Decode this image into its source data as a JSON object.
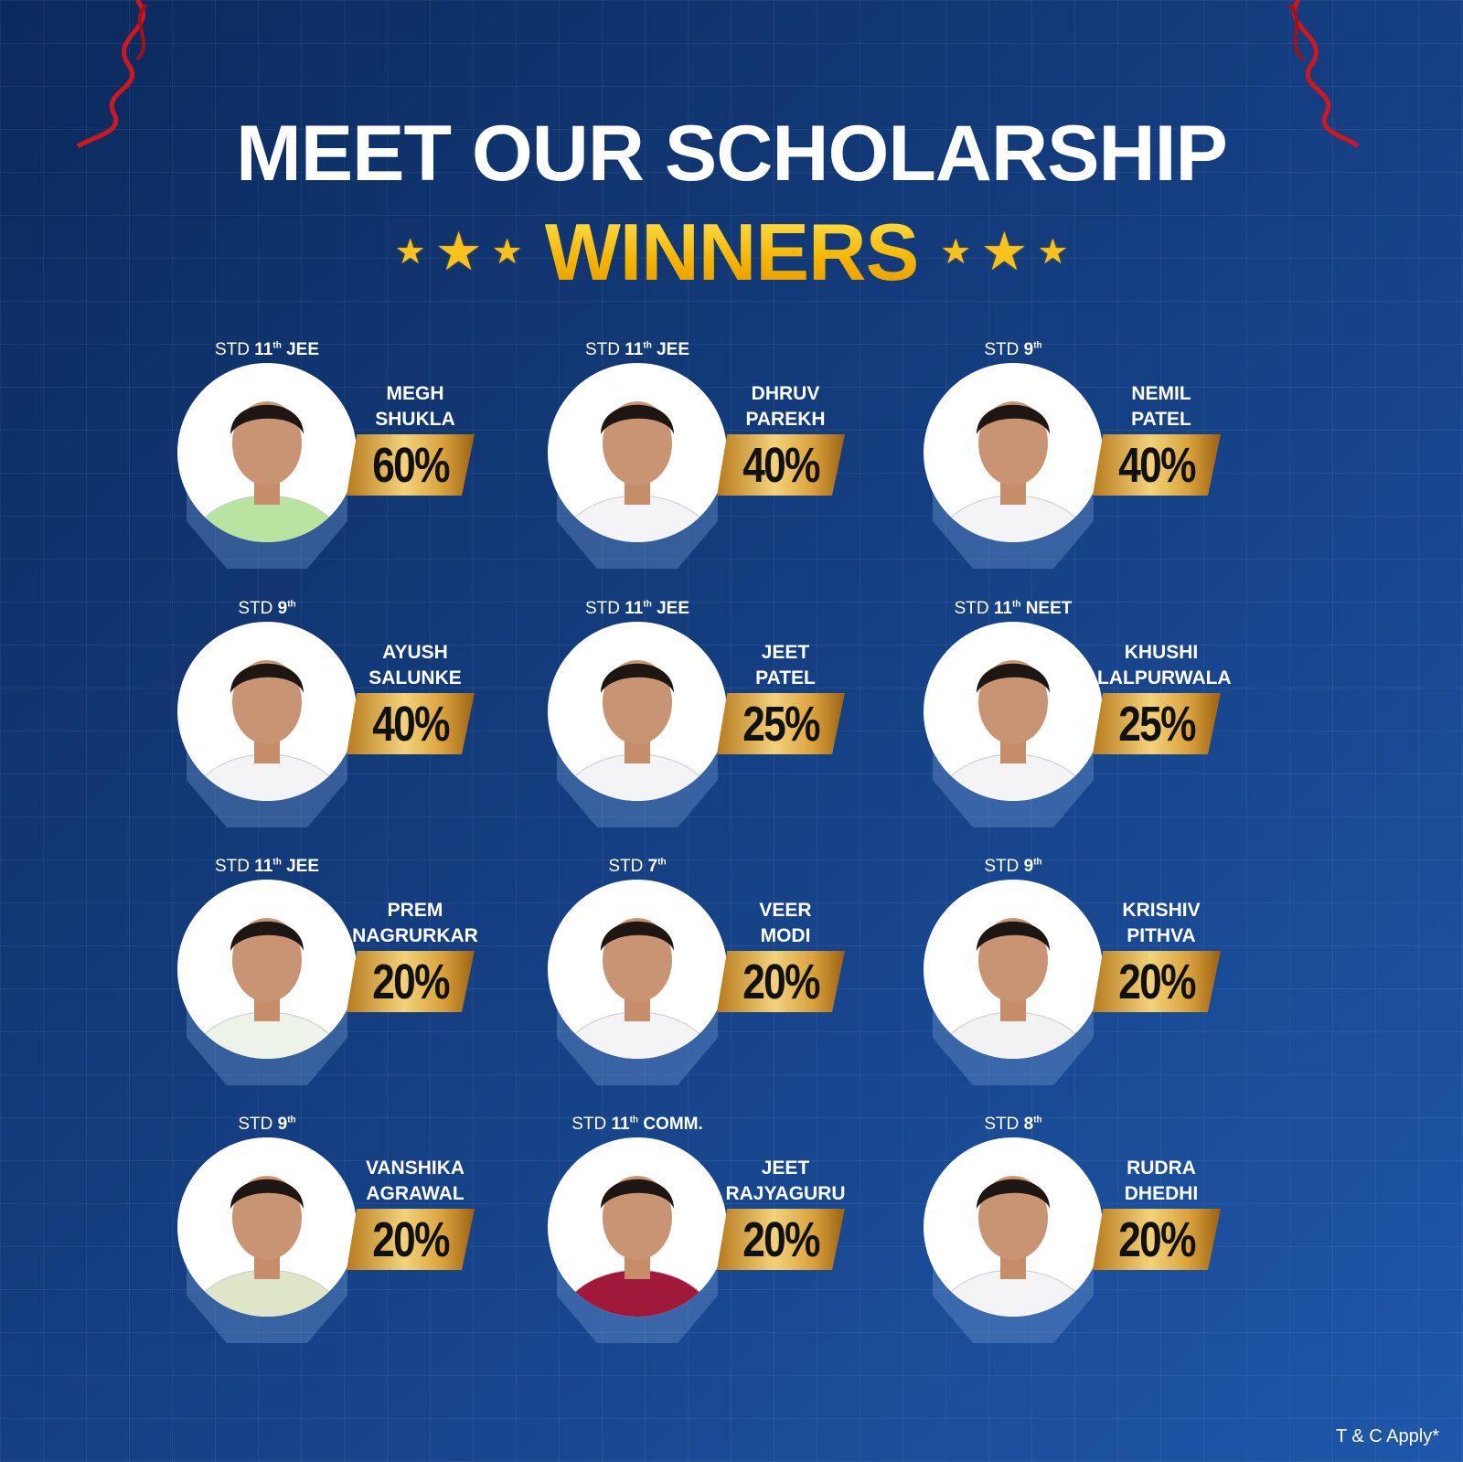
{
  "header": {
    "title": "MEET OUR SCHOLARSHIP",
    "subtitle": "WINNERS",
    "decor": {
      "stars_icon": "star-icon",
      "streamers_icon": "ribbon-streamer-icon",
      "accent_color": "#f7c21d",
      "background_color": "#153f82"
    }
  },
  "winners": [
    {
      "std_prefix": "STD",
      "grade": "11",
      "suffix": "th",
      "stream": "JEE",
      "first": "MEGH",
      "last": "SHUKLA",
      "scholarship": "60%",
      "shirt": "#b9e3a0"
    },
    {
      "std_prefix": "STD",
      "grade": "11",
      "suffix": "th",
      "stream": "JEE",
      "first": "DHRUV",
      "last": "PAREKH",
      "scholarship": "40%",
      "shirt": "#f4f4f6"
    },
    {
      "std_prefix": "STD",
      "grade": "9",
      "suffix": "th",
      "stream": "",
      "first": "NEMIL",
      "last": "PATEL",
      "scholarship": "40%",
      "shirt": "#f4f4f6"
    },
    {
      "std_prefix": "STD",
      "grade": "9",
      "suffix": "th",
      "stream": "",
      "first": "AYUSH",
      "last": "SALUNKE",
      "scholarship": "40%",
      "shirt": "#f4f4f6"
    },
    {
      "std_prefix": "STD",
      "grade": "11",
      "suffix": "th",
      "stream": "JEE",
      "first": "JEET",
      "last": "PATEL",
      "scholarship": "25%",
      "shirt": "#f4f4f6"
    },
    {
      "std_prefix": "STD",
      "grade": "11",
      "suffix": "th",
      "stream": "NEET",
      "first": "KHUSHI",
      "last": "LALPURWALA",
      "scholarship": "25%",
      "shirt": "#f4f4f6"
    },
    {
      "std_prefix": "STD",
      "grade": "11",
      "suffix": "th",
      "stream": "JEE",
      "first": "PREM",
      "last": "NAGRURKAR",
      "scholarship": "20%",
      "shirt": "#eef3ea"
    },
    {
      "std_prefix": "STD",
      "grade": "7",
      "suffix": "th",
      "stream": "",
      "first": "VEER",
      "last": "MODI",
      "scholarship": "20%",
      "shirt": "#f4f4f6"
    },
    {
      "std_prefix": "STD",
      "grade": "9",
      "suffix": "th",
      "stream": "",
      "first": "KRISHIV",
      "last": "PITHVA",
      "scholarship": "20%",
      "shirt": "#f2f2f2"
    },
    {
      "std_prefix": "STD",
      "grade": "9",
      "suffix": "th",
      "stream": "",
      "first": "VANSHIKA",
      "last": "AGRAWAL",
      "scholarship": "20%",
      "shirt": "#dfe6c8"
    },
    {
      "std_prefix": "STD",
      "grade": "11",
      "suffix": "th",
      "stream": "COMM.",
      "first": "JEET",
      "last": "RAJYAGURU",
      "scholarship": "20%",
      "shirt": "#a0183a"
    },
    {
      "std_prefix": "STD",
      "grade": "8",
      "suffix": "th",
      "stream": "",
      "first": "RUDRA",
      "last": "DHEDHI",
      "scholarship": "20%",
      "shirt": "#f4f4f6"
    }
  ],
  "footer": {
    "terms": "T & C Apply*"
  }
}
